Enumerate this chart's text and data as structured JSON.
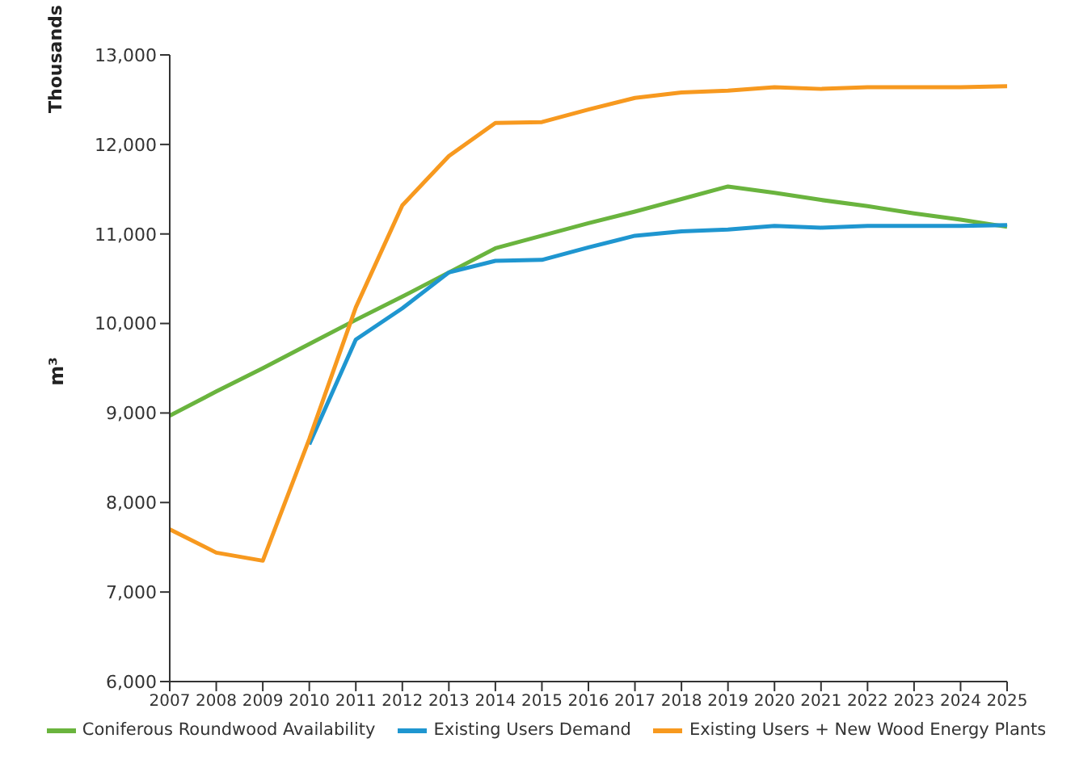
{
  "chart_data": {
    "type": "line",
    "categories": [
      "2007",
      "2008",
      "2009",
      "2010",
      "2011",
      "2012",
      "2013",
      "2014",
      "2015",
      "2016",
      "2017",
      "2018",
      "2019",
      "2020",
      "2021",
      "2022",
      "2023",
      "2024",
      "2025"
    ],
    "series": [
      {
        "name": "Coniferous Roundwood Availability",
        "color": "#6ab43e",
        "values": [
          8970,
          9240,
          9500,
          9770,
          10040,
          10300,
          10570,
          10840,
          10980,
          11120,
          11250,
          11390,
          11530,
          11460,
          11380,
          11310,
          11230,
          11160,
          11080
        ]
      },
      {
        "name": "Existing Users Demand",
        "color": "#1f96d0",
        "values": [
          null,
          null,
          null,
          8650,
          9820,
          10170,
          10570,
          10700,
          10710,
          10850,
          10980,
          11030,
          11050,
          11090,
          11070,
          11090,
          11090,
          11090,
          11100
        ]
      },
      {
        "name": "Existing Users + New Wood Energy Plants",
        "color": "#f7991f",
        "values": [
          7700,
          7440,
          7350,
          8710,
          10180,
          11320,
          11870,
          12240,
          12250,
          12390,
          12520,
          12580,
          12600,
          12640,
          12620,
          12640,
          12640,
          12640,
          12650
        ]
      }
    ],
    "ylabel": "m³",
    "annotations": [
      "Thousands"
    ],
    "ylim": [
      6000,
      13000
    ],
    "yticks": [
      {
        "value": 6000,
        "label": "6,000"
      },
      {
        "value": 7000,
        "label": "7,000"
      },
      {
        "value": 8000,
        "label": "8,000"
      },
      {
        "value": 9000,
        "label": "9,000"
      },
      {
        "value": 10000,
        "label": "10,000"
      },
      {
        "value": 11000,
        "label": "11,000"
      },
      {
        "value": 12000,
        "label": "12,000"
      },
      {
        "value": 13000,
        "label": "13,000"
      }
    ],
    "grid": false,
    "legend": "bottom",
    "marker": "none",
    "line_style": "solid"
  }
}
